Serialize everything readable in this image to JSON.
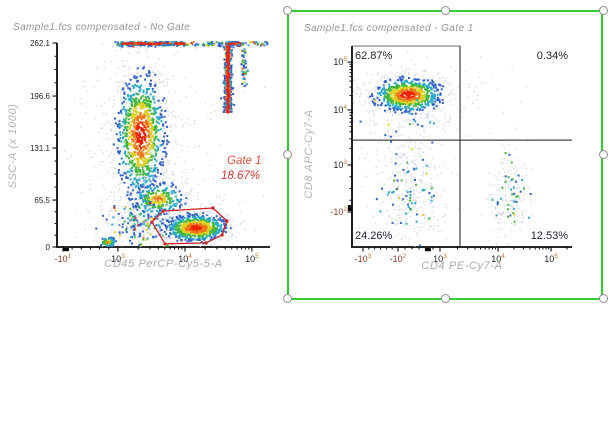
{
  "app": {
    "background": "#ffffff"
  },
  "selection": {
    "border_color": "#33cc33",
    "handle_fill": "#ffffff",
    "handle_stroke": "#8f8f8f",
    "handles": [
      "top-left",
      "top-center",
      "top-right",
      "middle-left",
      "middle-right",
      "bottom-left",
      "bottom-center",
      "bottom-right"
    ]
  },
  "palette": {
    "pale": "#c6d0e2",
    "blue": "#3060cc",
    "cyan": "#28aac8",
    "green": "#44b83a",
    "yellow": "#ddd020",
    "orange": "#f07818",
    "red": "#ee2200",
    "axis": "#0a0a0a",
    "tick_text": "#232323",
    "tick_neg": "#8a3a28",
    "tick_exp": "#c4762a",
    "quadrant_line": "#1a1a1a"
  },
  "chart_data": [
    {
      "id": "no-gate",
      "type": "scatter",
      "title": "Sample1.fcs compensated - No Gate",
      "xlabel": "CD45 PerCP-Cy5-5-A",
      "ylabel": "SSC-A (x 1000)",
      "x_scale": "logicle",
      "y_scale": "linear",
      "x_ticks": [
        {
          "t": "-10",
          "e": "1",
          "f": 0.028
        },
        {
          "t": "10",
          "e": "3",
          "f": 0.286
        },
        {
          "t": "10",
          "e": "4",
          "f": 0.601
        },
        {
          "t": "10",
          "e": "5",
          "f": 0.915
        }
      ],
      "y_ticks": [
        {
          "t": "0",
          "f": 0.0
        },
        {
          "t": "65.5",
          "f": 0.23
        },
        {
          "t": "131.1",
          "f": 0.485
        },
        {
          "t": "196.6",
          "f": 0.74
        },
        {
          "t": "262.1",
          "f": 1.0
        }
      ],
      "x_blob_fracs": [
        0.042
      ],
      "y_blob_fracs": [],
      "gate": {
        "name": "Gate 1",
        "percent": "18.67%",
        "color": "#cc2222",
        "name_color": "#e2553f",
        "percent_color": "#d2342e",
        "points_frac": [
          [
            0.446,
            0.122
          ],
          [
            0.498,
            0.176
          ],
          [
            0.732,
            0.191
          ],
          [
            0.798,
            0.127
          ],
          [
            0.775,
            0.059
          ],
          [
            0.7,
            0.02
          ],
          [
            0.507,
            0.015
          ]
        ]
      },
      "clusters": [
        {
          "shape": "g",
          "cx": 0.394,
          "cy": 0.549,
          "sx": 0.105,
          "sy": 0.22,
          "n": 400,
          "pal": "pale"
        },
        {
          "shape": "g",
          "cx": 0.394,
          "cy": 0.549,
          "sx": 0.057,
          "sy": 0.15,
          "n": 950,
          "pal": "density"
        },
        {
          "shape": "g",
          "cx": 0.474,
          "cy": 0.235,
          "sx": 0.062,
          "sy": 0.042,
          "n": 300,
          "pal": "density2"
        },
        {
          "shape": "g",
          "cx": 0.39,
          "cy": 0.103,
          "sx": 0.078,
          "sy": 0.058,
          "n": 220,
          "pal": "mix"
        },
        {
          "shape": "g",
          "cx": 0.24,
          "cy": 0.025,
          "sx": 0.022,
          "sy": 0.013,
          "n": 70,
          "pal": "density2"
        },
        {
          "shape": "g",
          "cx": 0.653,
          "cy": 0.093,
          "sx": 0.11,
          "sy": 0.055,
          "n": 150,
          "pal": "pale"
        },
        {
          "shape": "g",
          "cx": 0.653,
          "cy": 0.093,
          "sx": 0.072,
          "sy": 0.033,
          "n": 700,
          "pal": "density"
        },
        {
          "shape": "h",
          "x0": 0.27,
          "x1": 0.99,
          "cy": 0.995,
          "sy": 0.006,
          "n": 260,
          "pal": "mix"
        },
        {
          "shape": "h",
          "x0": 0.3,
          "x1": 0.6,
          "cy": 0.997,
          "sy": 0.004,
          "n": 320,
          "pal": "hot"
        },
        {
          "shape": "h",
          "x0": 0.795,
          "x1": 0.86,
          "cy": 0.997,
          "sy": 0.004,
          "n": 110,
          "pal": "hot"
        },
        {
          "shape": "v",
          "cx": 0.803,
          "sx": 0.009,
          "y0": 0.66,
          "y1": 0.985,
          "n": 500,
          "pal": "hot"
        },
        {
          "shape": "v",
          "cx": 0.878,
          "sx": 0.007,
          "y0": 0.78,
          "y1": 0.97,
          "n": 70,
          "pal": "mix"
        },
        {
          "shape": "g",
          "cx": 0.42,
          "cy": 0.46,
          "sx": 0.26,
          "sy": 0.3,
          "n": 160,
          "pal": "pale"
        },
        {
          "shape": "g",
          "cx": 0.5,
          "cy": 0.17,
          "sx": 0.18,
          "sy": 0.09,
          "n": 120,
          "pal": "pale"
        }
      ]
    },
    {
      "id": "gate-1",
      "type": "scatter",
      "title": "Sample1.fcs compensated - Gate 1",
      "xlabel": "CD4 PE-Cy7-A",
      "ylabel": "CD8 APC-Cy7-A",
      "x_scale": "logicle",
      "y_scale": "logicle",
      "x_ticks": [
        {
          "t": "-10",
          "e": "3",
          "f": 0.05
        },
        {
          "t": "-10",
          "e": "2",
          "f": 0.209
        },
        {
          "t": "10",
          "e": "3",
          "f": 0.4
        },
        {
          "t": "10",
          "e": "4",
          "f": 0.664
        },
        {
          "t": "10",
          "e": "5",
          "f": 0.905
        }
      ],
      "y_ticks": [
        {
          "t": "-10",
          "e": "2",
          "f": 0.174
        },
        {
          "t": "10",
          "e": "3",
          "f": 0.408
        },
        {
          "t": "10",
          "e": "4",
          "f": 0.682
        },
        {
          "t": "10",
          "e": "5",
          "f": 0.92
        }
      ],
      "x_blob_fracs": [
        0.345
      ],
      "y_blob_fracs": [
        0.194
      ],
      "quadrants": {
        "x_frac": 0.491,
        "y_frac": 0.532,
        "labels": {
          "ul": "62.87%",
          "ur": "0.34%",
          "ll": "24.26%",
          "lr": "12.53%"
        }
      },
      "clusters": [
        {
          "shape": "g",
          "cx": 0.2545,
          "cy": 0.756,
          "sx": 0.145,
          "sy": 0.08,
          "n": 260,
          "pal": "pale"
        },
        {
          "shape": "g",
          "cx": 0.2545,
          "cy": 0.756,
          "sx": 0.078,
          "sy": 0.042,
          "n": 750,
          "pal": "density"
        },
        {
          "shape": "g",
          "cx": 0.26,
          "cy": 0.6,
          "sx": 0.1,
          "sy": 0.08,
          "n": 50,
          "pal": "pale"
        },
        {
          "shape": "g",
          "cx": 0.27,
          "cy": 0.62,
          "sx": 0.08,
          "sy": 0.06,
          "n": 18,
          "pal": "coldMix"
        },
        {
          "shape": "g",
          "cx": 0.264,
          "cy": 0.274,
          "sx": 0.078,
          "sy": 0.135,
          "n": 240,
          "pal": "pale"
        },
        {
          "shape": "g",
          "cx": 0.264,
          "cy": 0.274,
          "sx": 0.058,
          "sy": 0.105,
          "n": 60,
          "pal": "coldMix"
        },
        {
          "shape": "g",
          "cx": 0.723,
          "cy": 0.244,
          "sx": 0.048,
          "sy": 0.12,
          "n": 170,
          "pal": "pale"
        },
        {
          "shape": "g",
          "cx": 0.723,
          "cy": 0.244,
          "sx": 0.038,
          "sy": 0.1,
          "n": 38,
          "pal": "coldMix"
        },
        {
          "shape": "g",
          "cx": 0.75,
          "cy": 0.78,
          "sx": 0.14,
          "sy": 0.1,
          "n": 12,
          "pal": "pale"
        },
        {
          "shape": "g",
          "cx": 0.24,
          "cy": 0.46,
          "sx": 0.13,
          "sy": 0.16,
          "n": 90,
          "pal": "pale"
        }
      ]
    }
  ]
}
